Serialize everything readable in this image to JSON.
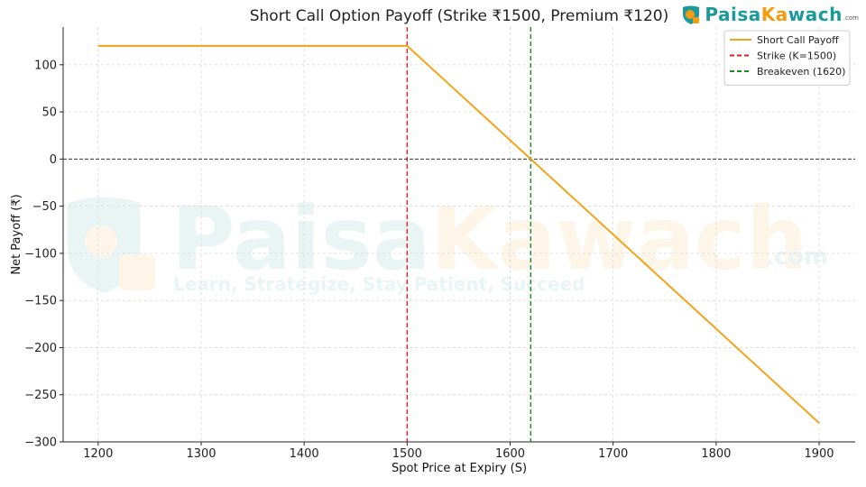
{
  "chart_data": {
    "type": "line",
    "title": "Short Call Option Payoff (Strike ₹1500, Premium ₹120)",
    "xlabel": "Spot Price at Expiry (S)",
    "ylabel": "Net Payoff (₹)",
    "xlim": [
      1166,
      1935
    ],
    "ylim": [
      -300,
      140
    ],
    "x_ticks": [
      1200,
      1300,
      1400,
      1500,
      1600,
      1700,
      1800,
      1900
    ],
    "y_ticks": [
      100,
      50,
      0,
      -50,
      -100,
      -150,
      -200,
      -250,
      -300
    ],
    "y_tick_labels": [
      "100",
      "50",
      "0",
      "−50",
      "−100",
      "−150",
      "−200",
      "−250",
      "−300"
    ],
    "grid": true,
    "legend_position": "top-right",
    "series": [
      {
        "name": "Short Call Payoff",
        "color": "#f5a31a",
        "style": "solid",
        "x": [
          1200,
          1500,
          1900
        ],
        "y": [
          120,
          120,
          -280
        ]
      }
    ],
    "reference_lines": [
      {
        "name": "Strike (K=1500)",
        "orientation": "vertical",
        "x": 1500,
        "color": "#e02020",
        "style": "dashed"
      },
      {
        "name": "Breakeven (1620)",
        "orientation": "vertical",
        "x": 1620,
        "color": "#1a8a1a",
        "style": "dashed"
      },
      {
        "name": "",
        "orientation": "horizontal",
        "y": 0,
        "color": "#333333",
        "style": "dashed"
      }
    ]
  },
  "watermark": {
    "brand_part1": "Paisa",
    "brand_part2": "Kawach",
    "domain": ".com",
    "tagline": "Learn, Strategize, Stay Patient, Succeed"
  },
  "logo": {
    "brand_part1": "Paisa",
    "brand_part2": "Ka",
    "brand_part3": "wach",
    "domain": ".com"
  },
  "colors": {
    "payoff": "#f5a31a",
    "strike": "#e02020",
    "breakeven": "#1a8a1a",
    "brand_teal": "#1a9a9a",
    "brand_orange": "#f39c12"
  }
}
